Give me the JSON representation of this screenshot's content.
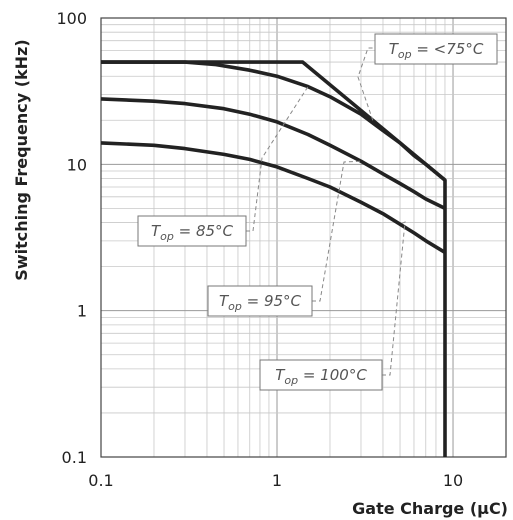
{
  "chart_data": {
    "type": "line",
    "xlabel": "Gate Charge (µC)",
    "ylabel": "Switching Frequency (kHz)",
    "xscale": "log",
    "yscale": "log",
    "xlim": [
      0.1,
      20
    ],
    "ylim": [
      0.1,
      100
    ],
    "grid": true,
    "x_ticks": [
      0.1,
      1,
      10
    ],
    "x_tick_labels": [
      "0.1",
      "1",
      "10"
    ],
    "y_ticks": [
      0.1,
      1,
      10,
      100
    ],
    "y_tick_labels": [
      "0.1",
      "1",
      "10",
      "100"
    ],
    "series": [
      {
        "label_main": "T",
        "label_sub": "op",
        "label_rest": " = <75°C",
        "points": [
          [
            0.1,
            50
          ],
          [
            1.4,
            50
          ],
          [
            3.5,
            20
          ],
          [
            9,
            7.8
          ],
          [
            9,
            0.1
          ]
        ]
      },
      {
        "label_main": "T",
        "label_sub": "op",
        "label_rest": " = 85°C",
        "points": [
          [
            0.1,
            50
          ],
          [
            0.3,
            50
          ],
          [
            0.45,
            48
          ],
          [
            0.7,
            44
          ],
          [
            1,
            40
          ],
          [
            1.5,
            34
          ],
          [
            2,
            29
          ],
          [
            3,
            22
          ],
          [
            4,
            17
          ],
          [
            5,
            14
          ],
          [
            6,
            11.5
          ],
          [
            7,
            10
          ],
          [
            9,
            7.8
          ]
        ]
      },
      {
        "label_main": "T",
        "label_sub": "op",
        "label_rest": " = 95°C",
        "points": [
          [
            0.1,
            28
          ],
          [
            0.2,
            27
          ],
          [
            0.3,
            26
          ],
          [
            0.5,
            24
          ],
          [
            0.7,
            22
          ],
          [
            1,
            19.5
          ],
          [
            1.5,
            16
          ],
          [
            2,
            13.5
          ],
          [
            3,
            10.5
          ],
          [
            4,
            8.6
          ],
          [
            5,
            7.4
          ],
          [
            6,
            6.5
          ],
          [
            7,
            5.8
          ],
          [
            9,
            5.0
          ]
        ]
      },
      {
        "label_main": "T",
        "label_sub": "op",
        "label_rest": " = 100°C",
        "points": [
          [
            0.1,
            14
          ],
          [
            0.2,
            13.5
          ],
          [
            0.3,
            12.8
          ],
          [
            0.5,
            11.7
          ],
          [
            0.7,
            10.8
          ],
          [
            1,
            9.6
          ],
          [
            1.5,
            8.0
          ],
          [
            2,
            7.0
          ],
          [
            3,
            5.5
          ],
          [
            4,
            4.6
          ],
          [
            5,
            3.9
          ],
          [
            6,
            3.4
          ],
          [
            7,
            3.0
          ],
          [
            9,
            2.5
          ]
        ]
      }
    ]
  }
}
